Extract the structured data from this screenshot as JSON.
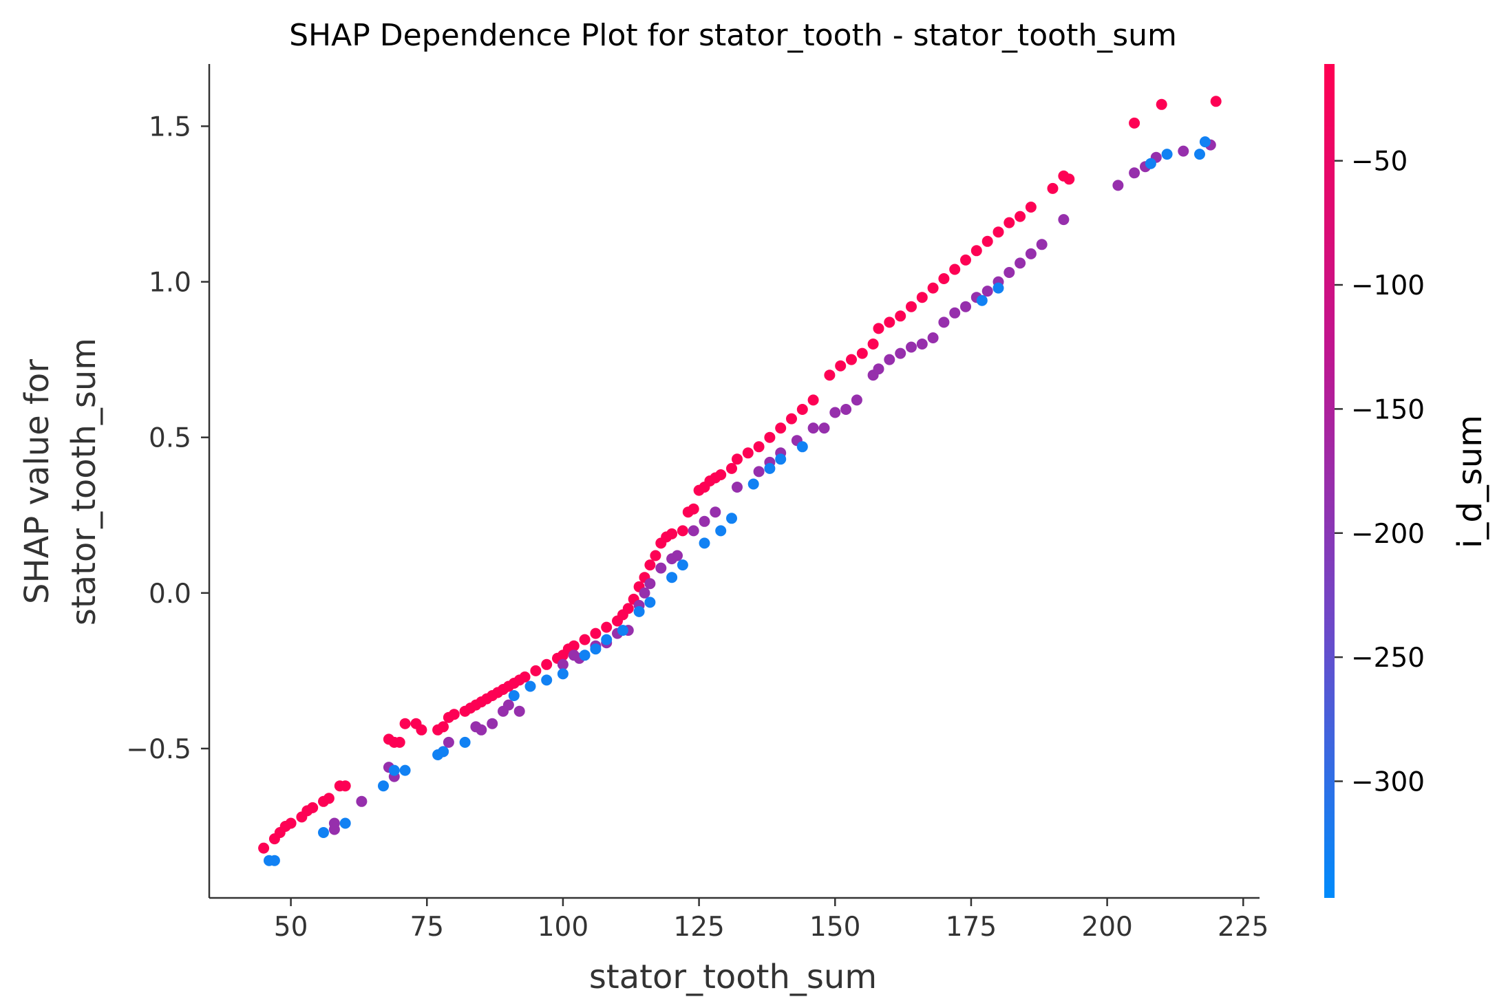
{
  "chart_data": {
    "type": "scatter",
    "title": "SHAP Dependence Plot for stator_tooth - stator_tooth_sum",
    "xlabel": "stator_tooth_sum",
    "ylabel_lines": [
      "SHAP value for",
      "stator_tooth_sum"
    ],
    "xlim": [
      35,
      228
    ],
    "ylim": [
      -0.98,
      1.7
    ],
    "x_ticks": [
      50,
      75,
      100,
      125,
      150,
      175,
      200,
      225
    ],
    "x_tick_labels": [
      "50",
      "75",
      "100",
      "125",
      "150",
      "175",
      "200",
      "225"
    ],
    "y_ticks": [
      -0.5,
      0.0,
      0.5,
      1.0,
      1.5
    ],
    "y_tick_labels": [
      "−0.5",
      "0.0",
      "0.5",
      "1.0",
      "1.5"
    ],
    "grid": false,
    "colorbar": {
      "label": "i_d_sum",
      "range": [
        -347,
        -11
      ],
      "ticks": [
        -50,
        -100,
        -150,
        -200,
        -250,
        -300
      ],
      "tick_labels": [
        "−50",
        "−100",
        "−150",
        "−200",
        "−250",
        "−300"
      ],
      "colors": [
        "#008bfb",
        "#6e48c8",
        "#c0158f",
        "#ff0052"
      ]
    },
    "series": [
      {
        "color_value": -15,
        "points": [
          [
            45,
            -0.82
          ],
          [
            47,
            -0.79
          ],
          [
            48,
            -0.77
          ],
          [
            49,
            -0.75
          ],
          [
            50,
            -0.74
          ],
          [
            52,
            -0.72
          ],
          [
            53,
            -0.7
          ],
          [
            54,
            -0.69
          ],
          [
            56,
            -0.67
          ],
          [
            57,
            -0.66
          ],
          [
            59,
            -0.62
          ],
          [
            60,
            -0.62
          ],
          [
            68,
            -0.47
          ],
          [
            69,
            -0.48
          ],
          [
            70,
            -0.48
          ],
          [
            71,
            -0.42
          ],
          [
            73,
            -0.42
          ],
          [
            74,
            -0.44
          ],
          [
            77,
            -0.44
          ],
          [
            78,
            -0.43
          ],
          [
            79,
            -0.4
          ],
          [
            80,
            -0.39
          ],
          [
            82,
            -0.38
          ],
          [
            83,
            -0.37
          ],
          [
            84,
            -0.36
          ],
          [
            85,
            -0.35
          ],
          [
            86,
            -0.34
          ],
          [
            87,
            -0.33
          ],
          [
            88,
            -0.32
          ],
          [
            89,
            -0.31
          ],
          [
            90,
            -0.3
          ],
          [
            91,
            -0.29
          ],
          [
            92,
            -0.28
          ],
          [
            93,
            -0.27
          ],
          [
            95,
            -0.25
          ],
          [
            97,
            -0.23
          ],
          [
            99,
            -0.21
          ],
          [
            100,
            -0.2
          ],
          [
            101,
            -0.18
          ],
          [
            102,
            -0.17
          ],
          [
            104,
            -0.15
          ],
          [
            106,
            -0.13
          ],
          [
            108,
            -0.11
          ],
          [
            110,
            -0.09
          ],
          [
            111,
            -0.07
          ],
          [
            112,
            -0.05
          ],
          [
            113,
            -0.02
          ],
          [
            114,
            0.02
          ],
          [
            115,
            0.05
          ],
          [
            116,
            0.09
          ],
          [
            117,
            0.12
          ],
          [
            118,
            0.16
          ],
          [
            119,
            0.18
          ],
          [
            120,
            0.19
          ],
          [
            122,
            0.2
          ],
          [
            123,
            0.26
          ],
          [
            124,
            0.27
          ],
          [
            125,
            0.33
          ],
          [
            126,
            0.34
          ],
          [
            127,
            0.36
          ],
          [
            128,
            0.37
          ],
          [
            129,
            0.38
          ],
          [
            131,
            0.4
          ],
          [
            132,
            0.43
          ],
          [
            134,
            0.45
          ],
          [
            136,
            0.47
          ],
          [
            138,
            0.5
          ],
          [
            140,
            0.53
          ],
          [
            142,
            0.56
          ],
          [
            144,
            0.59
          ],
          [
            146,
            0.62
          ],
          [
            149,
            0.7
          ],
          [
            151,
            0.73
          ],
          [
            153,
            0.75
          ],
          [
            155,
            0.77
          ],
          [
            157,
            0.8
          ],
          [
            158,
            0.85
          ],
          [
            160,
            0.87
          ],
          [
            162,
            0.89
          ],
          [
            164,
            0.92
          ],
          [
            166,
            0.95
          ],
          [
            168,
            0.98
          ],
          [
            170,
            1.01
          ],
          [
            172,
            1.04
          ],
          [
            174,
            1.07
          ],
          [
            176,
            1.1
          ],
          [
            178,
            1.13
          ],
          [
            180,
            1.16
          ],
          [
            182,
            1.19
          ],
          [
            184,
            1.21
          ],
          [
            186,
            1.24
          ],
          [
            190,
            1.3
          ],
          [
            192,
            1.34
          ],
          [
            193,
            1.33
          ],
          [
            205,
            1.51
          ],
          [
            210,
            1.57
          ],
          [
            220,
            1.58
          ]
        ]
      },
      {
        "color_value": -180,
        "points": [
          [
            58,
            -0.74
          ],
          [
            58,
            -0.76
          ],
          [
            63,
            -0.67
          ],
          [
            68,
            -0.56
          ],
          [
            69,
            -0.59
          ],
          [
            78,
            -0.51
          ],
          [
            79,
            -0.48
          ],
          [
            84,
            -0.43
          ],
          [
            85,
            -0.44
          ],
          [
            87,
            -0.42
          ],
          [
            89,
            -0.38
          ],
          [
            90,
            -0.36
          ],
          [
            92,
            -0.38
          ],
          [
            100,
            -0.23
          ],
          [
            102,
            -0.2
          ],
          [
            103,
            -0.21
          ],
          [
            106,
            -0.17
          ],
          [
            108,
            -0.16
          ],
          [
            110,
            -0.13
          ],
          [
            112,
            -0.12
          ],
          [
            114,
            -0.04
          ],
          [
            115,
            0.0
          ],
          [
            116,
            0.03
          ],
          [
            118,
            0.08
          ],
          [
            120,
            0.11
          ],
          [
            121,
            0.12
          ],
          [
            124,
            0.2
          ],
          [
            126,
            0.23
          ],
          [
            128,
            0.26
          ],
          [
            132,
            0.34
          ],
          [
            136,
            0.39
          ],
          [
            138,
            0.42
          ],
          [
            140,
            0.45
          ],
          [
            143,
            0.49
          ],
          [
            146,
            0.53
          ],
          [
            148,
            0.53
          ],
          [
            150,
            0.58
          ],
          [
            152,
            0.59
          ],
          [
            154,
            0.62
          ],
          [
            157,
            0.7
          ],
          [
            158,
            0.72
          ],
          [
            160,
            0.75
          ],
          [
            162,
            0.77
          ],
          [
            164,
            0.79
          ],
          [
            166,
            0.8
          ],
          [
            168,
            0.82
          ],
          [
            170,
            0.87
          ],
          [
            172,
            0.9
          ],
          [
            174,
            0.92
          ],
          [
            176,
            0.95
          ],
          [
            178,
            0.97
          ],
          [
            180,
            1.0
          ],
          [
            182,
            1.03
          ],
          [
            184,
            1.06
          ],
          [
            186,
            1.09
          ],
          [
            188,
            1.12
          ],
          [
            192,
            1.2
          ],
          [
            202,
            1.31
          ],
          [
            205,
            1.35
          ],
          [
            207,
            1.37
          ],
          [
            209,
            1.4
          ],
          [
            214,
            1.42
          ],
          [
            219,
            1.44
          ]
        ]
      },
      {
        "color_value": -330,
        "points": [
          [
            46,
            -0.86
          ],
          [
            47,
            -0.86
          ],
          [
            56,
            -0.77
          ],
          [
            60,
            -0.74
          ],
          [
            67,
            -0.62
          ],
          [
            69,
            -0.57
          ],
          [
            71,
            -0.57
          ],
          [
            77,
            -0.52
          ],
          [
            78,
            -0.51
          ],
          [
            82,
            -0.48
          ],
          [
            91,
            -0.33
          ],
          [
            94,
            -0.3
          ],
          [
            97,
            -0.28
          ],
          [
            100,
            -0.26
          ],
          [
            104,
            -0.2
          ],
          [
            106,
            -0.18
          ],
          [
            108,
            -0.15
          ],
          [
            111,
            -0.12
          ],
          [
            114,
            -0.06
          ],
          [
            116,
            -0.03
          ],
          [
            120,
            0.05
          ],
          [
            122,
            0.09
          ],
          [
            126,
            0.16
          ],
          [
            129,
            0.2
          ],
          [
            131,
            0.24
          ],
          [
            135,
            0.35
          ],
          [
            138,
            0.4
          ],
          [
            140,
            0.43
          ],
          [
            144,
            0.47
          ],
          [
            177,
            0.94
          ],
          [
            180,
            0.98
          ],
          [
            208,
            1.38
          ],
          [
            211,
            1.41
          ],
          [
            217,
            1.41
          ],
          [
            218,
            1.45
          ]
        ]
      }
    ]
  }
}
